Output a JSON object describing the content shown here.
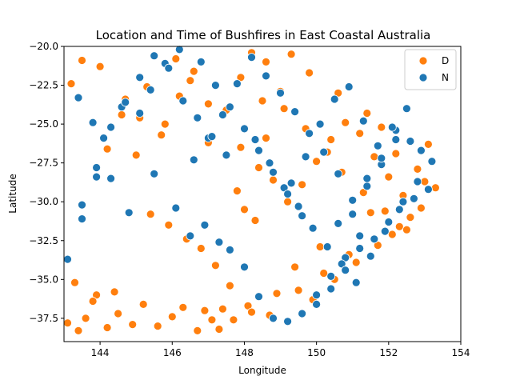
{
  "chart_data": {
    "type": "scatter",
    "title": "Location and Time of Bushfires in East Coastal Australia",
    "xlabel": "Longitude",
    "ylabel": "Latitude",
    "xlim": [
      143,
      154
    ],
    "ylim": [
      -39,
      -20
    ],
    "x_ticks": [
      "144",
      "146",
      "148",
      "150",
      "152",
      "154"
    ],
    "y_ticks": [
      "−20.0",
      "−22.5",
      "−25.0",
      "−27.5",
      "−30.0",
      "−32.5",
      "−35.0",
      "−37.5"
    ],
    "x_tick_values": [
      144,
      146,
      148,
      150,
      152,
      154
    ],
    "y_tick_values": [
      -20,
      -22.5,
      -25,
      -27.5,
      -30,
      -32.5,
      -35,
      -37.5
    ],
    "grid": false,
    "legend_position": "top-right",
    "series": [
      {
        "name": "D",
        "color": "#ff7f0e",
        "x": [
          143.1,
          143.4,
          143.6,
          143.9,
          144.2,
          144.5,
          143.3,
          143.8,
          144.4,
          144.9,
          145.2,
          145.6,
          146.0,
          146.3,
          146.7,
          147.1,
          147.4,
          144.2,
          144.6,
          145.3,
          145.0,
          145.8,
          146.2,
          146.6,
          147.0,
          147.5,
          147.9,
          148.2,
          148.6,
          149.0,
          148.4,
          148.8,
          147.8,
          148.0,
          148.3,
          149.2,
          149.6,
          150.0,
          150.4,
          150.8,
          151.2,
          151.6,
          152.0,
          152.4,
          152.8,
          153.1,
          153.3,
          152.6,
          152.1,
          151.5,
          150.9,
          150.2,
          149.5,
          149.9,
          150.5,
          151.1,
          151.7,
          152.3,
          152.9,
          148.7,
          148.1,
          147.6,
          147.2,
          146.8,
          146.4,
          145.9,
          145.4,
          146.1,
          146.5,
          147.0,
          145.7,
          145.1,
          144.7,
          144.0,
          143.5,
          143.2,
          148.5,
          149.1,
          149.7,
          150.3,
          150.7,
          151.3,
          151.9,
          152.5,
          150.1,
          149.4,
          148.9,
          148.2,
          147.7,
          147.3,
          146.9,
          152.2,
          151.8,
          151.4,
          150.6,
          149.8,
          149.3,
          148.6,
          147.9,
          153.0
        ],
        "y": [
          -37.8,
          -38.3,
          -37.5,
          -36.0,
          -38.1,
          -37.2,
          -35.2,
          -36.4,
          -35.8,
          -37.9,
          -36.6,
          -38.0,
          -37.4,
          -36.8,
          -38.3,
          -37.6,
          -36.9,
          -26.6,
          -24.4,
          -22.6,
          -27.0,
          -25.0,
          -23.2,
          -21.6,
          -26.2,
          -24.1,
          -22.0,
          -20.4,
          -21.0,
          -22.9,
          -27.8,
          -28.6,
          -29.3,
          -30.5,
          -31.2,
          -30.0,
          -28.9,
          -27.4,
          -26.0,
          -24.9,
          -25.6,
          -27.1,
          -28.4,
          -29.6,
          -27.9,
          -26.3,
          -29.1,
          -31.0,
          -32.1,
          -30.7,
          -33.4,
          -34.6,
          -35.7,
          -36.3,
          -35.0,
          -33.9,
          -32.8,
          -31.6,
          -30.4,
          -37.3,
          -36.7,
          -35.4,
          -34.1,
          -33.0,
          -32.4,
          -31.5,
          -30.8,
          -20.8,
          -22.2,
          -23.7,
          -25.7,
          -24.6,
          -23.4,
          -21.3,
          -20.9,
          -22.4,
          -23.5,
          -24.0,
          -25.3,
          -26.8,
          -28.1,
          -29.4,
          -30.6,
          -31.8,
          -32.9,
          -34.2,
          -35.9,
          -37.1,
          -37.6,
          -38.2,
          -37.0,
          -26.9,
          -25.2,
          -24.3,
          -23.0,
          -21.7,
          -20.5,
          -25.9,
          -26.5,
          -28.7
        ],
        "approximate": true
      },
      {
        "name": "N",
        "color": "#1f77b4",
        "x": [
          143.1,
          143.5,
          143.9,
          144.1,
          144.6,
          145.1,
          145.5,
          144.8,
          143.4,
          143.8,
          144.3,
          146.1,
          146.5,
          146.9,
          147.3,
          147.6,
          148.0,
          148.4,
          148.8,
          149.2,
          149.6,
          150.0,
          150.4,
          150.8,
          151.2,
          151.6,
          152.0,
          152.4,
          152.8,
          153.2,
          152.6,
          152.2,
          151.8,
          151.4,
          151.0,
          150.6,
          150.2,
          149.8,
          149.4,
          149.0,
          148.6,
          148.2,
          147.8,
          147.4,
          147.0,
          146.6,
          146.2,
          145.8,
          145.4,
          149.3,
          149.7,
          150.1,
          150.5,
          150.9,
          151.3,
          151.7,
          152.1,
          152.5,
          152.9,
          153.1,
          148.3,
          148.7,
          149.1,
          149.5,
          149.9,
          150.3,
          150.7,
          151.1,
          151.5,
          151.9,
          152.3,
          152.7,
          147.5,
          147.1,
          146.7,
          146.3,
          145.9,
          145.5,
          145.1,
          144.7,
          144.3,
          143.9,
          143.5,
          150.0,
          150.4,
          150.8,
          151.2,
          149.6,
          149.2,
          148.8,
          148.4,
          148.0,
          147.6,
          147.2,
          146.8,
          150.6,
          151.0,
          151.4,
          151.8,
          152.2
        ],
        "y": [
          -33.7,
          -31.1,
          -28.4,
          -25.9,
          -23.9,
          -24.3,
          -28.2,
          -30.7,
          -23.3,
          -24.9,
          -28.5,
          -30.4,
          -32.2,
          -31.5,
          -32.6,
          -33.1,
          -34.2,
          -36.1,
          -37.5,
          -37.7,
          -37.2,
          -36.0,
          -34.8,
          -33.6,
          -33.0,
          -32.4,
          -31.3,
          -30.0,
          -28.7,
          -27.4,
          -26.1,
          -25.4,
          -27.6,
          -29.0,
          -30.8,
          -28.2,
          -26.8,
          -25.6,
          -24.2,
          -23.0,
          -21.9,
          -20.7,
          -22.4,
          -24.4,
          -25.9,
          -27.3,
          -20.2,
          -21.1,
          -22.8,
          -28.8,
          -27.1,
          -25.0,
          -23.4,
          -22.6,
          -24.8,
          -26.4,
          -25.2,
          -24.0,
          -26.7,
          -29.2,
          -26.0,
          -27.5,
          -29.1,
          -30.3,
          -31.7,
          -32.9,
          -34.0,
          -35.2,
          -33.5,
          -31.9,
          -30.5,
          -29.8,
          -27.0,
          -25.8,
          -24.6,
          -23.5,
          -21.4,
          -20.6,
          -22.0,
          -23.6,
          -25.2,
          -27.8,
          -30.2,
          -36.6,
          -35.6,
          -34.4,
          -32.2,
          -30.9,
          -29.5,
          -28.1,
          -26.7,
          -25.3,
          -23.9,
          -22.5,
          -21.0,
          -31.4,
          -29.9,
          -28.5,
          -27.2,
          -26.0
        ],
        "approximate": true
      }
    ]
  }
}
